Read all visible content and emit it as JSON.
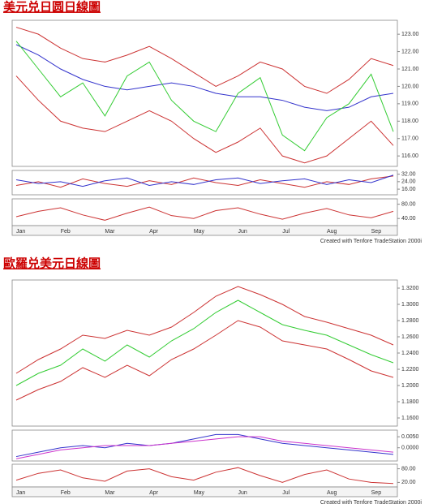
{
  "chart_data": [
    {
      "type": "line",
      "title": "美元兑日圆日線圖",
      "ylim": [
        115.4,
        123.8
      ],
      "yticks": [
        {
          "value": 123,
          "label": "123.00"
        },
        {
          "value": 122,
          "label": "122.00"
        },
        {
          "value": 121,
          "label": "121.00"
        },
        {
          "value": 120,
          "label": "120.00"
        },
        {
          "value": 119,
          "label": "119.00"
        },
        {
          "value": 118,
          "label": "118.00"
        },
        {
          "value": 117,
          "label": "117.00"
        },
        {
          "value": 116,
          "label": "116.00"
        }
      ],
      "series": [
        {
          "color": "#cc3333",
          "values": [
            123.4,
            123.0,
            122.2,
            121.6,
            121.4,
            121.8,
            122.3,
            121.6,
            120.8,
            120.0,
            120.6,
            121.4,
            121.0,
            120.0,
            119.6,
            120.4,
            121.6,
            121.2
          ]
        },
        {
          "color": "#cc3333",
          "values": [
            120.6,
            119.2,
            118.0,
            117.6,
            117.4,
            118.0,
            118.6,
            118.0,
            117.0,
            116.2,
            116.8,
            117.6,
            116.0,
            115.6,
            116.0,
            117.0,
            118.0,
            116.6
          ]
        },
        {
          "color": "#3333cc",
          "values": [
            122.4,
            121.8,
            121.0,
            120.4,
            120.0,
            119.8,
            120.0,
            120.2,
            120.0,
            119.6,
            119.4,
            119.4,
            119.2,
            118.8,
            118.6,
            118.8,
            119.4,
            119.6
          ]
        },
        {
          "color": "#33cc33",
          "values": [
            122.6,
            121.0,
            119.4,
            120.2,
            118.3,
            120.6,
            121.4,
            119.2,
            118.0,
            117.4,
            119.6,
            120.5,
            117.2,
            116.3,
            118.2,
            119.0,
            120.7,
            117.4
          ]
        }
      ]
    },
    {
      "type": "line",
      "ylim": [
        10,
        36
      ],
      "yticks": [
        {
          "value": 32,
          "label": "32.00"
        },
        {
          "value": 24,
          "label": "24.00"
        },
        {
          "value": 16,
          "label": "16.00"
        }
      ],
      "series": [
        {
          "color": "#cc3333",
          "values": [
            20,
            24,
            18,
            27,
            22,
            19,
            25,
            21,
            28,
            23,
            20,
            26,
            22,
            18,
            24,
            21,
            27,
            30
          ]
        },
        {
          "color": "#3333cc",
          "values": [
            26,
            22,
            24,
            19,
            25,
            28,
            20,
            24,
            21,
            26,
            28,
            22,
            25,
            27,
            21,
            26,
            23,
            31
          ]
        }
      ]
    },
    {
      "type": "line",
      "ylim": [
        20,
        95
      ],
      "yticks": [
        {
          "value": 80,
          "label": "80.00"
        },
        {
          "value": 40,
          "label": "40.00"
        }
      ],
      "categories": [
        "Jan",
        null,
        "Feb",
        null,
        "Mar",
        null,
        "Apr",
        null,
        "May",
        null,
        "Jun",
        null,
        "Jul",
        null,
        "Aug",
        null,
        "Sep",
        null
      ],
      "credit": "Created with Tenfore TradeStation 2000i",
      "series": [
        {
          "color": "#cc3333",
          "values": [
            45,
            60,
            70,
            50,
            35,
            55,
            72,
            48,
            40,
            62,
            70,
            52,
            38,
            55,
            68,
            50,
            42,
            60
          ]
        }
      ]
    },
    {
      "type": "line",
      "title": "歐羅兑美元日線圖",
      "ylim": [
        1.15,
        1.33
      ],
      "yticks": [
        {
          "value": 1.32,
          "label": "1.3200"
        },
        {
          "value": 1.3,
          "label": "1.3000"
        },
        {
          "value": 1.28,
          "label": "1.2800"
        },
        {
          "value": 1.26,
          "label": "1.2600"
        },
        {
          "value": 1.24,
          "label": "1.2400"
        },
        {
          "value": 1.22,
          "label": "1.2200"
        },
        {
          "value": 1.2,
          "label": "1.2000"
        },
        {
          "value": 1.18,
          "label": "1.1800"
        },
        {
          "value": 1.16,
          "label": "1.1600"
        }
      ],
      "series": [
        {
          "color": "#cc3333",
          "values": [
            1.215,
            1.232,
            1.245,
            1.262,
            1.258,
            1.268,
            1.262,
            1.272,
            1.29,
            1.31,
            1.322,
            1.312,
            1.3,
            1.285,
            1.278,
            1.27,
            1.262,
            1.25
          ]
        },
        {
          "color": "#cc3333",
          "values": [
            1.182,
            1.195,
            1.205,
            1.222,
            1.21,
            1.225,
            1.212,
            1.232,
            1.245,
            1.262,
            1.28,
            1.272,
            1.255,
            1.25,
            1.245,
            1.232,
            1.218,
            1.21
          ]
        },
        {
          "color": "#33cc33",
          "values": [
            1.2,
            1.215,
            1.225,
            1.245,
            1.23,
            1.25,
            1.235,
            1.255,
            1.27,
            1.29,
            1.305,
            1.29,
            1.275,
            1.268,
            1.262,
            1.25,
            1.238,
            1.228
          ]
        }
      ]
    },
    {
      "type": "line",
      "ylim": [
        -0.006,
        0.008
      ],
      "yticks": [
        {
          "value": 0.005,
          "label": "0.0050"
        },
        {
          "value": 0,
          "label": "0.0000"
        }
      ],
      "series": [
        {
          "color": "#3333cc",
          "values": [
            -0.004,
            -0.002,
            0.0,
            0.001,
            0.0,
            0.002,
            0.001,
            0.002,
            0.004,
            0.006,
            0.006,
            0.004,
            0.002,
            0.001,
            0.0,
            -0.001,
            -0.002,
            -0.003
          ]
        },
        {
          "color": "#cc33cc",
          "values": [
            -0.005,
            -0.003,
            -0.001,
            0.0,
            0.001,
            0.001,
            0.001,
            0.002,
            0.003,
            0.004,
            0.005,
            0.005,
            0.003,
            0.002,
            0.001,
            0.0,
            -0.001,
            -0.002
          ]
        }
      ]
    },
    {
      "type": "line",
      "ylim": [
        0,
        100
      ],
      "yticks": [
        {
          "value": 80,
          "label": "80.00"
        },
        {
          "value": 20,
          "label": "20.00"
        }
      ],
      "categories": [
        "Jan",
        null,
        "Feb",
        null,
        "Mar",
        null,
        "Apr",
        null,
        "May",
        null,
        "Jun",
        null,
        "Jul",
        null,
        "Aug",
        null,
        "Sep",
        null
      ],
      "credit": "Created with Tenfore TradeStation 2000i",
      "series": [
        {
          "color": "#cc3333",
          "values": [
            30,
            60,
            75,
            40,
            25,
            70,
            80,
            45,
            30,
            65,
            85,
            50,
            20,
            55,
            75,
            35,
            20,
            15
          ]
        }
      ]
    }
  ]
}
